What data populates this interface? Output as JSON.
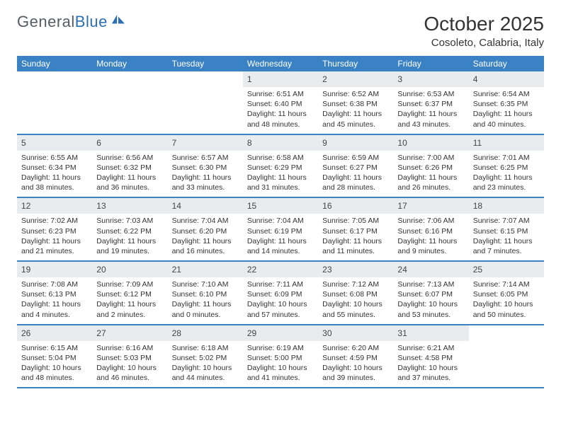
{
  "brand": {
    "text1": "General",
    "text2": "Blue"
  },
  "title": "October 2025",
  "location": "Cosoleto, Calabria, Italy",
  "colors": {
    "header_bg": "#3b82c4",
    "header_text": "#ffffff",
    "daynum_bg": "#e9ecef",
    "text": "#333333",
    "logo_gray": "#555c63",
    "logo_blue": "#2d6fb5"
  },
  "daysOfWeek": [
    "Sunday",
    "Monday",
    "Tuesday",
    "Wednesday",
    "Thursday",
    "Friday",
    "Saturday"
  ],
  "weeks": [
    [
      {
        "empty": true
      },
      {
        "empty": true
      },
      {
        "empty": true
      },
      {
        "n": "1",
        "sr": "Sunrise: 6:51 AM",
        "ss": "Sunset: 6:40 PM",
        "dl1": "Daylight: 11 hours",
        "dl2": "and 48 minutes."
      },
      {
        "n": "2",
        "sr": "Sunrise: 6:52 AM",
        "ss": "Sunset: 6:38 PM",
        "dl1": "Daylight: 11 hours",
        "dl2": "and 45 minutes."
      },
      {
        "n": "3",
        "sr": "Sunrise: 6:53 AM",
        "ss": "Sunset: 6:37 PM",
        "dl1": "Daylight: 11 hours",
        "dl2": "and 43 minutes."
      },
      {
        "n": "4",
        "sr": "Sunrise: 6:54 AM",
        "ss": "Sunset: 6:35 PM",
        "dl1": "Daylight: 11 hours",
        "dl2": "and 40 minutes."
      }
    ],
    [
      {
        "n": "5",
        "sr": "Sunrise: 6:55 AM",
        "ss": "Sunset: 6:34 PM",
        "dl1": "Daylight: 11 hours",
        "dl2": "and 38 minutes."
      },
      {
        "n": "6",
        "sr": "Sunrise: 6:56 AM",
        "ss": "Sunset: 6:32 PM",
        "dl1": "Daylight: 11 hours",
        "dl2": "and 36 minutes."
      },
      {
        "n": "7",
        "sr": "Sunrise: 6:57 AM",
        "ss": "Sunset: 6:30 PM",
        "dl1": "Daylight: 11 hours",
        "dl2": "and 33 minutes."
      },
      {
        "n": "8",
        "sr": "Sunrise: 6:58 AM",
        "ss": "Sunset: 6:29 PM",
        "dl1": "Daylight: 11 hours",
        "dl2": "and 31 minutes."
      },
      {
        "n": "9",
        "sr": "Sunrise: 6:59 AM",
        "ss": "Sunset: 6:27 PM",
        "dl1": "Daylight: 11 hours",
        "dl2": "and 28 minutes."
      },
      {
        "n": "10",
        "sr": "Sunrise: 7:00 AM",
        "ss": "Sunset: 6:26 PM",
        "dl1": "Daylight: 11 hours",
        "dl2": "and 26 minutes."
      },
      {
        "n": "11",
        "sr": "Sunrise: 7:01 AM",
        "ss": "Sunset: 6:25 PM",
        "dl1": "Daylight: 11 hours",
        "dl2": "and 23 minutes."
      }
    ],
    [
      {
        "n": "12",
        "sr": "Sunrise: 7:02 AM",
        "ss": "Sunset: 6:23 PM",
        "dl1": "Daylight: 11 hours",
        "dl2": "and 21 minutes."
      },
      {
        "n": "13",
        "sr": "Sunrise: 7:03 AM",
        "ss": "Sunset: 6:22 PM",
        "dl1": "Daylight: 11 hours",
        "dl2": "and 19 minutes."
      },
      {
        "n": "14",
        "sr": "Sunrise: 7:04 AM",
        "ss": "Sunset: 6:20 PM",
        "dl1": "Daylight: 11 hours",
        "dl2": "and 16 minutes."
      },
      {
        "n": "15",
        "sr": "Sunrise: 7:04 AM",
        "ss": "Sunset: 6:19 PM",
        "dl1": "Daylight: 11 hours",
        "dl2": "and 14 minutes."
      },
      {
        "n": "16",
        "sr": "Sunrise: 7:05 AM",
        "ss": "Sunset: 6:17 PM",
        "dl1": "Daylight: 11 hours",
        "dl2": "and 11 minutes."
      },
      {
        "n": "17",
        "sr": "Sunrise: 7:06 AM",
        "ss": "Sunset: 6:16 PM",
        "dl1": "Daylight: 11 hours",
        "dl2": "and 9 minutes."
      },
      {
        "n": "18",
        "sr": "Sunrise: 7:07 AM",
        "ss": "Sunset: 6:15 PM",
        "dl1": "Daylight: 11 hours",
        "dl2": "and 7 minutes."
      }
    ],
    [
      {
        "n": "19",
        "sr": "Sunrise: 7:08 AM",
        "ss": "Sunset: 6:13 PM",
        "dl1": "Daylight: 11 hours",
        "dl2": "and 4 minutes."
      },
      {
        "n": "20",
        "sr": "Sunrise: 7:09 AM",
        "ss": "Sunset: 6:12 PM",
        "dl1": "Daylight: 11 hours",
        "dl2": "and 2 minutes."
      },
      {
        "n": "21",
        "sr": "Sunrise: 7:10 AM",
        "ss": "Sunset: 6:10 PM",
        "dl1": "Daylight: 11 hours",
        "dl2": "and 0 minutes."
      },
      {
        "n": "22",
        "sr": "Sunrise: 7:11 AM",
        "ss": "Sunset: 6:09 PM",
        "dl1": "Daylight: 10 hours",
        "dl2": "and 57 minutes."
      },
      {
        "n": "23",
        "sr": "Sunrise: 7:12 AM",
        "ss": "Sunset: 6:08 PM",
        "dl1": "Daylight: 10 hours",
        "dl2": "and 55 minutes."
      },
      {
        "n": "24",
        "sr": "Sunrise: 7:13 AM",
        "ss": "Sunset: 6:07 PM",
        "dl1": "Daylight: 10 hours",
        "dl2": "and 53 minutes."
      },
      {
        "n": "25",
        "sr": "Sunrise: 7:14 AM",
        "ss": "Sunset: 6:05 PM",
        "dl1": "Daylight: 10 hours",
        "dl2": "and 50 minutes."
      }
    ],
    [
      {
        "n": "26",
        "sr": "Sunrise: 6:15 AM",
        "ss": "Sunset: 5:04 PM",
        "dl1": "Daylight: 10 hours",
        "dl2": "and 48 minutes."
      },
      {
        "n": "27",
        "sr": "Sunrise: 6:16 AM",
        "ss": "Sunset: 5:03 PM",
        "dl1": "Daylight: 10 hours",
        "dl2": "and 46 minutes."
      },
      {
        "n": "28",
        "sr": "Sunrise: 6:18 AM",
        "ss": "Sunset: 5:02 PM",
        "dl1": "Daylight: 10 hours",
        "dl2": "and 44 minutes."
      },
      {
        "n": "29",
        "sr": "Sunrise: 6:19 AM",
        "ss": "Sunset: 5:00 PM",
        "dl1": "Daylight: 10 hours",
        "dl2": "and 41 minutes."
      },
      {
        "n": "30",
        "sr": "Sunrise: 6:20 AM",
        "ss": "Sunset: 4:59 PM",
        "dl1": "Daylight: 10 hours",
        "dl2": "and 39 minutes."
      },
      {
        "n": "31",
        "sr": "Sunrise: 6:21 AM",
        "ss": "Sunset: 4:58 PM",
        "dl1": "Daylight: 10 hours",
        "dl2": "and 37 minutes."
      },
      {
        "empty": true
      }
    ]
  ]
}
